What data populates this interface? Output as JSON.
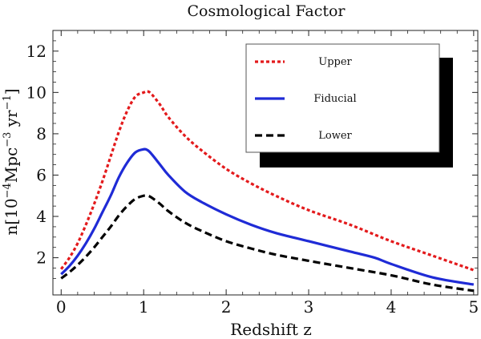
{
  "chart_data": {
    "type": "line",
    "title": "Cosmological Factor",
    "xlabel": "Redshift z",
    "ylabel": {
      "base": "n[10",
      "exp1": "−4",
      "mid1": "Mpc",
      "exp2": "−3",
      "mid2": " yr",
      "exp3": "−1",
      "end": "]"
    },
    "xlim": [
      -0.1,
      5.05
    ],
    "ylim": [
      0.2,
      13.0
    ],
    "xticks": [
      0,
      1,
      2,
      3,
      4,
      5
    ],
    "yticks": [
      2,
      4,
      6,
      8,
      10,
      12
    ],
    "legend_position": "top-right",
    "series": [
      {
        "name": "Upper",
        "color": "#e31a1c",
        "dash": "dotted",
        "x": [
          0,
          0.1,
          0.2,
          0.3,
          0.4,
          0.5,
          0.6,
          0.7,
          0.8,
          0.9,
          1.0,
          1.05,
          1.1,
          1.2,
          1.3,
          1.5,
          1.7,
          2.0,
          2.3,
          2.6,
          3.0,
          3.5,
          4.0,
          4.5,
          5.0
        ],
        "y": [
          1.45,
          2.0,
          2.7,
          3.6,
          4.6,
          5.7,
          6.9,
          8.1,
          9.1,
          9.8,
          10.0,
          10.05,
          9.9,
          9.4,
          8.8,
          7.9,
          7.2,
          6.3,
          5.6,
          5.0,
          4.3,
          3.6,
          2.8,
          2.1,
          1.4
        ]
      },
      {
        "name": "Fiducial",
        "color": "#1f2bd6",
        "dash": "solid",
        "x": [
          0,
          0.1,
          0.2,
          0.3,
          0.4,
          0.5,
          0.6,
          0.7,
          0.8,
          0.9,
          1.0,
          1.05,
          1.1,
          1.2,
          1.3,
          1.5,
          1.7,
          2.0,
          2.3,
          2.6,
          3.0,
          3.5,
          3.8,
          4.0,
          4.5,
          5.0
        ],
        "y": [
          1.2,
          1.6,
          2.1,
          2.7,
          3.4,
          4.2,
          5.0,
          5.9,
          6.6,
          7.1,
          7.25,
          7.2,
          7.0,
          6.5,
          6.0,
          5.2,
          4.7,
          4.1,
          3.6,
          3.2,
          2.8,
          2.3,
          2.0,
          1.7,
          1.05,
          0.7
        ]
      },
      {
        "name": "Lower",
        "color": "#000000",
        "dash": "dashed",
        "x": [
          0,
          0.1,
          0.2,
          0.3,
          0.4,
          0.5,
          0.6,
          0.7,
          0.8,
          0.9,
          1.0,
          1.05,
          1.1,
          1.2,
          1.3,
          1.5,
          1.7,
          2.0,
          2.3,
          2.6,
          3.0,
          3.5,
          4.0,
          4.5,
          5.0
        ],
        "y": [
          1.0,
          1.3,
          1.65,
          2.05,
          2.5,
          3.0,
          3.5,
          4.05,
          4.5,
          4.85,
          5.0,
          5.0,
          4.9,
          4.6,
          4.25,
          3.7,
          3.3,
          2.8,
          2.45,
          2.15,
          1.85,
          1.5,
          1.15,
          0.7,
          0.4
        ]
      }
    ]
  }
}
